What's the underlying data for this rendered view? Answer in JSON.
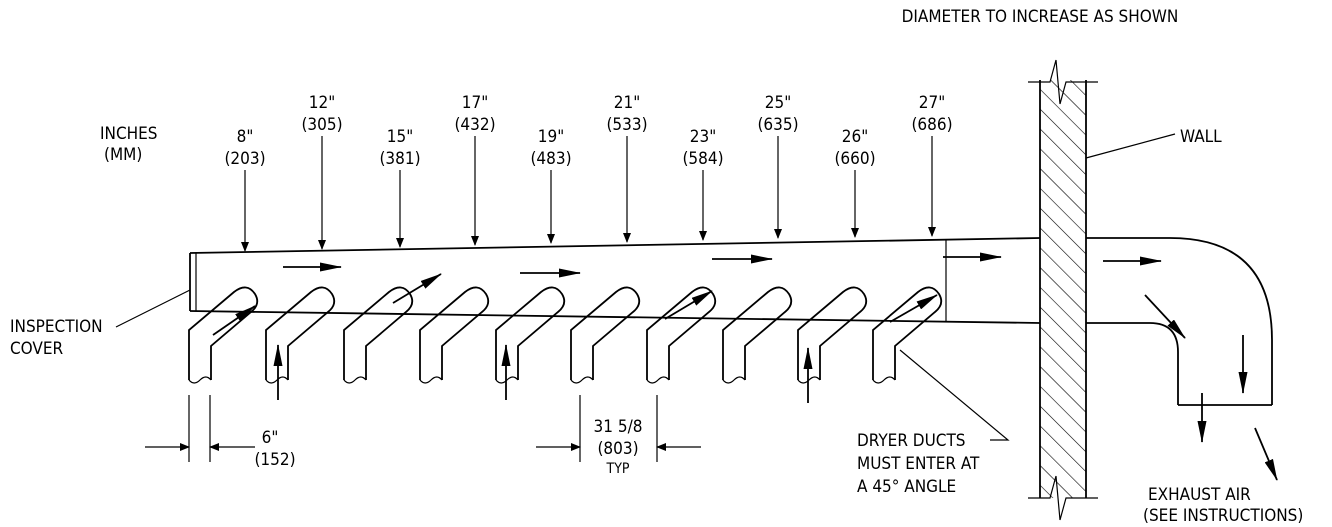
{
  "title": "DIAMETER TO INCREASE AS SHOWN",
  "units": {
    "line1": "INCHES",
    "line2": "(MM)"
  },
  "diameters": [
    {
      "in": "8\"",
      "mm": "(203)"
    },
    {
      "in": "12\"",
      "mm": "(305)"
    },
    {
      "in": "15\"",
      "mm": "(381)"
    },
    {
      "in": "17\"",
      "mm": "(432)"
    },
    {
      "in": "19\"",
      "mm": "(483)"
    },
    {
      "in": "21\"",
      "mm": "(533)"
    },
    {
      "in": "23\"",
      "mm": "(584)"
    },
    {
      "in": "25\"",
      "mm": "(635)"
    },
    {
      "in": "26\"",
      "mm": "(660)"
    },
    {
      "in": "27\"",
      "mm": "(686)"
    }
  ],
  "wall_label": "WALL",
  "inspection": {
    "line1": "INSPECTION",
    "line2": "COVER"
  },
  "dim_duct": {
    "in": "6\"",
    "mm": "(152)"
  },
  "dim_spacing": {
    "in": "31 5/8",
    "mm": "(803)",
    "note": "TYP"
  },
  "dryer_note": {
    "line1": "DRYER DUCTS",
    "line2": "MUST ENTER AT",
    "line3": "A 45° ANGLE"
  },
  "exhaust": {
    "line1": "EXHAUST AIR",
    "line2": "(SEE INSTRUCTIONS)"
  }
}
